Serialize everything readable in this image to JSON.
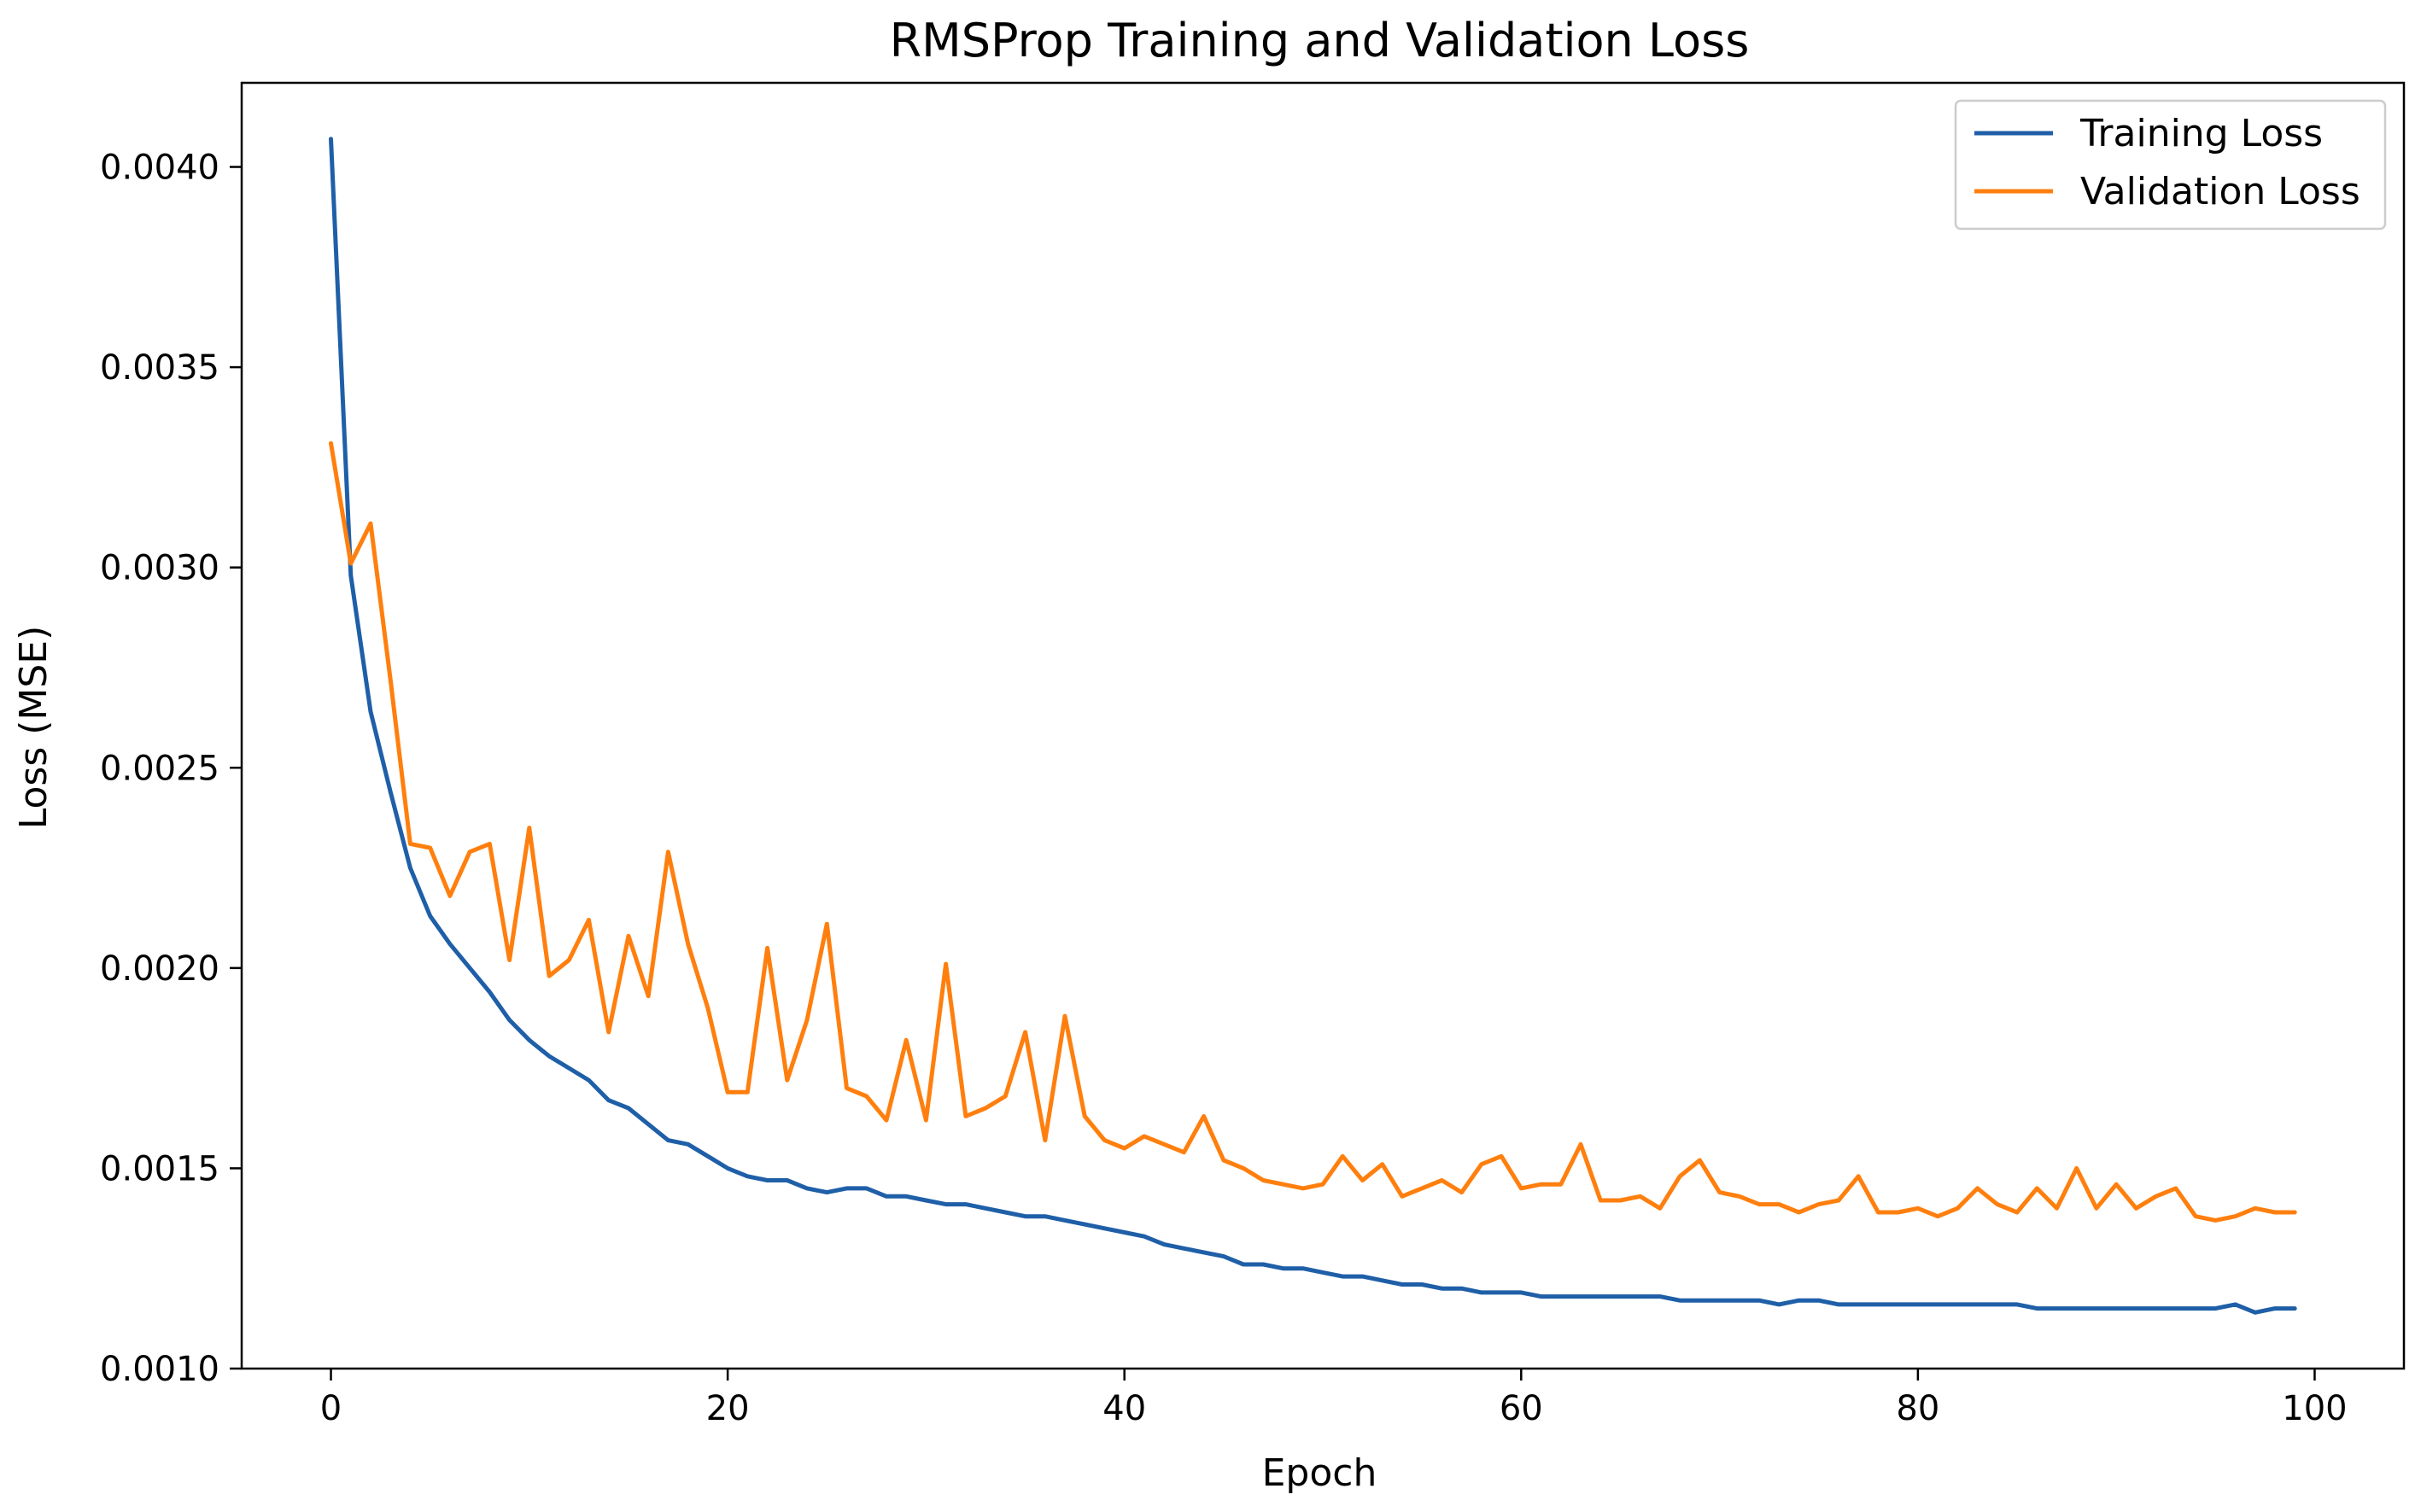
{
  "chart_data": {
    "type": "line",
    "title": "RMSProp Training and Validation Loss",
    "xlabel": "Epoch",
    "ylabel": "Loss (MSE)",
    "xlim": [
      -4.5,
      104.5
    ],
    "ylim": [
      0.001,
      0.00421
    ],
    "xticks": [
      0,
      20,
      40,
      60,
      80,
      100
    ],
    "yticks": [
      0.001,
      0.0015,
      0.002,
      0.0025,
      0.003,
      0.0035,
      0.004
    ],
    "xtick_labels": [
      "0",
      "20",
      "40",
      "60",
      "80",
      "100"
    ],
    "ytick_labels": [
      "0.0010",
      "0.0015",
      "0.0020",
      "0.0025",
      "0.0030",
      "0.0035",
      "0.0040"
    ],
    "grid": false,
    "legend_position": "top-right",
    "series": [
      {
        "name": "Training Loss",
        "color": "#1f5fa8",
        "values": [
          0.00407,
          0.00298,
          0.00264,
          0.00244,
          0.00225,
          0.00213,
          0.00206,
          0.002,
          0.00194,
          0.00187,
          0.00182,
          0.00178,
          0.00175,
          0.00172,
          0.00167,
          0.00165,
          0.00161,
          0.00157,
          0.00156,
          0.00153,
          0.0015,
          0.00148,
          0.00147,
          0.00147,
          0.00145,
          0.00144,
          0.00145,
          0.00145,
          0.00143,
          0.00143,
          0.00142,
          0.00141,
          0.00141,
          0.0014,
          0.00139,
          0.00138,
          0.00138,
          0.00137,
          0.00136,
          0.00135,
          0.00134,
          0.00133,
          0.00131,
          0.0013,
          0.00129,
          0.00128,
          0.00126,
          0.00126,
          0.00125,
          0.00125,
          0.00124,
          0.00123,
          0.00123,
          0.00122,
          0.00121,
          0.00121,
          0.0012,
          0.0012,
          0.00119,
          0.00119,
          0.00119,
          0.00118,
          0.00118,
          0.00118,
          0.00118,
          0.00118,
          0.00118,
          0.00118,
          0.00117,
          0.00117,
          0.00117,
          0.00117,
          0.00117,
          0.00116,
          0.00117,
          0.00117,
          0.00116,
          0.00116,
          0.00116,
          0.00116,
          0.00116,
          0.00116,
          0.00116,
          0.00116,
          0.00116,
          0.00116,
          0.00115,
          0.00115,
          0.00115,
          0.00115,
          0.00115,
          0.00115,
          0.00115,
          0.00115,
          0.00115,
          0.00115,
          0.00116,
          0.00114,
          0.00115,
          0.00115
        ]
      },
      {
        "name": "Validation Loss",
        "color": "#ff7f0e",
        "values": [
          0.00331,
          0.00301,
          0.00311,
          0.00272,
          0.00231,
          0.0023,
          0.00218,
          0.00229,
          0.00231,
          0.00202,
          0.00235,
          0.00198,
          0.00202,
          0.00212,
          0.00184,
          0.00208,
          0.00193,
          0.00229,
          0.00206,
          0.0019,
          0.00169,
          0.00169,
          0.00205,
          0.00172,
          0.00187,
          0.00211,
          0.0017,
          0.00168,
          0.00162,
          0.00182,
          0.00162,
          0.00201,
          0.00163,
          0.00165,
          0.00168,
          0.00184,
          0.00157,
          0.00188,
          0.00163,
          0.00157,
          0.00155,
          0.00158,
          0.00156,
          0.00154,
          0.00163,
          0.00152,
          0.0015,
          0.00147,
          0.00146,
          0.00145,
          0.00146,
          0.00153,
          0.00147,
          0.00151,
          0.00143,
          0.00145,
          0.00147,
          0.00144,
          0.00151,
          0.00153,
          0.00145,
          0.00146,
          0.00146,
          0.00156,
          0.00142,
          0.00142,
          0.00143,
          0.0014,
          0.00148,
          0.00152,
          0.00144,
          0.00143,
          0.00141,
          0.00141,
          0.00139,
          0.00141,
          0.00142,
          0.00148,
          0.00139,
          0.00139,
          0.0014,
          0.00138,
          0.0014,
          0.00145,
          0.00141,
          0.00139,
          0.00145,
          0.0014,
          0.0015,
          0.0014,
          0.00146,
          0.0014,
          0.00143,
          0.00145,
          0.00138,
          0.00137,
          0.00138,
          0.0014,
          0.00139,
          0.00139
        ]
      }
    ]
  }
}
